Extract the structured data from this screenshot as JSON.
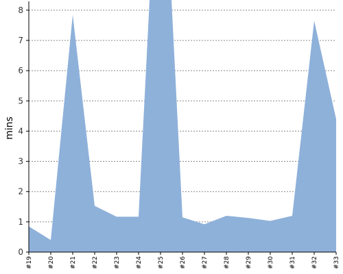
{
  "chart_data": {
    "type": "area",
    "title": "",
    "xlabel": "",
    "ylabel": "mins",
    "ylim": [
      0,
      8.2
    ],
    "yticks": [
      0,
      1,
      2,
      3,
      4,
      5,
      6,
      7,
      8
    ],
    "grid": true,
    "categories": [
      "#19",
      "#20",
      "#21",
      "#22",
      "#23",
      "#24",
      "#25",
      "#26",
      "#27",
      "#28",
      "#29",
      "#30",
      "#31",
      "#32",
      "#33"
    ],
    "series": [
      {
        "color": "#8eb1da",
        "points": [
          {
            "x": "#19",
            "y": 0.85
          },
          {
            "x": "#20",
            "y": 0.4
          },
          {
            "x": "#21",
            "y": 7.85
          },
          {
            "x": "#22",
            "y": 1.53
          },
          {
            "x": "#23",
            "y": 1.17
          },
          {
            "x": "#24",
            "y": 1.17
          },
          {
            "x": "#24.5",
            "y": 8.4
          },
          {
            "x": "#25.5",
            "y": 8.4
          },
          {
            "x": "#26",
            "y": 1.15
          },
          {
            "x": "#27",
            "y": 0.92
          },
          {
            "x": "#28",
            "y": 1.2
          },
          {
            "x": "#29",
            "y": 1.13
          },
          {
            "x": "#30",
            "y": 1.03
          },
          {
            "x": "#31",
            "y": 1.2
          },
          {
            "x": "#32",
            "y": 7.65
          },
          {
            "x": "#33",
            "y": 4.4
          }
        ]
      }
    ]
  }
}
